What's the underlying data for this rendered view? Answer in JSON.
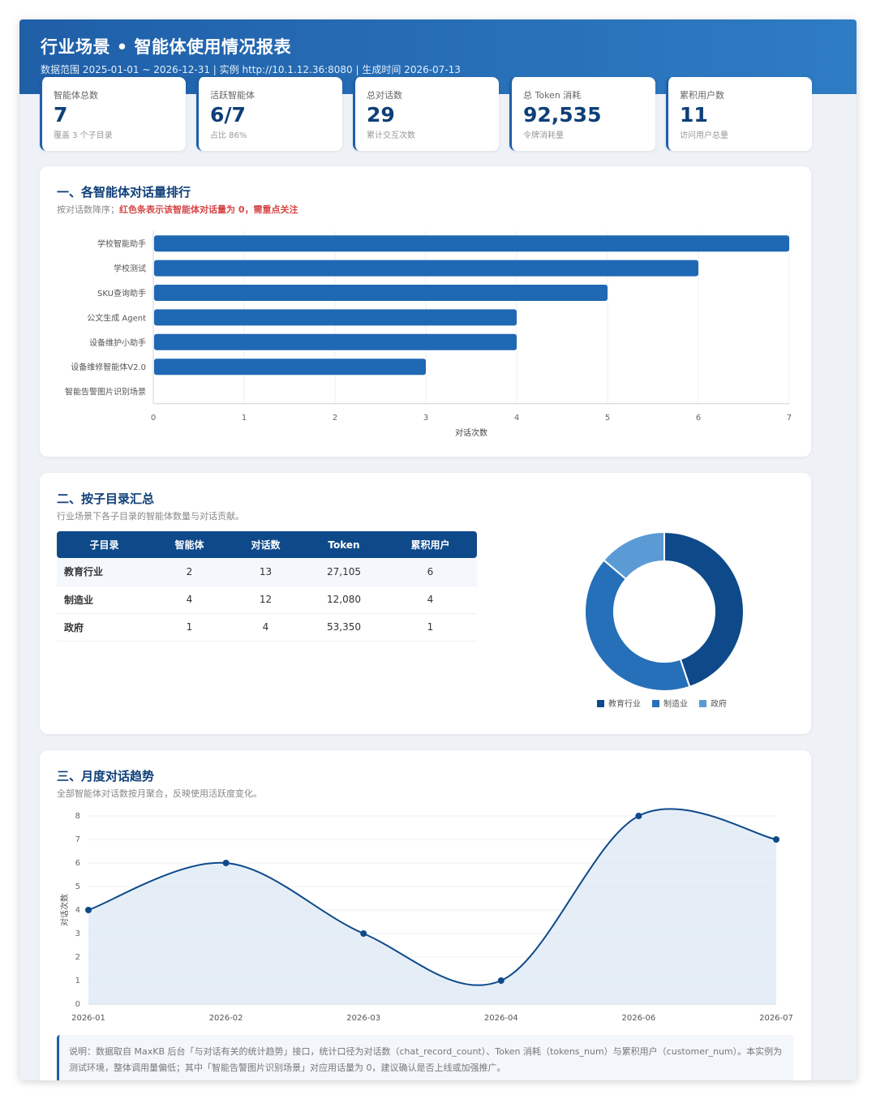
{
  "header": {
    "title": "行业场景 • 智能体使用情况报表",
    "meta": "数据范围 2025-01-01 ~ 2026-12-31  |  实例 http://10.1.12.36:8080  |  生成时间 2026-07-13"
  },
  "kpis": [
    {
      "label": "智能体总数",
      "value": "7",
      "sub": "覆盖 3 个子目录"
    },
    {
      "label": "活跃智能体",
      "value": "6/7",
      "sub": "占比 86%"
    },
    {
      "label": "总对话数",
      "value": "29",
      "sub": "累计交互次数"
    },
    {
      "label": "总 Token 消耗",
      "value": "92,535",
      "sub": "令牌消耗量"
    },
    {
      "label": "累积用户数",
      "value": "11",
      "sub": "访问用户总量"
    }
  ],
  "section1": {
    "title": "一、各智能体对话量排行",
    "desc_prefix": "按对话数降序；",
    "desc_highlight": "红色条表示该智能体对话量为 0，需重点关注"
  },
  "section2": {
    "title": "二、按子目录汇总",
    "desc": "行业场景下各子目录的智能体数量与对话贡献。",
    "columns": [
      "子目录",
      "智能体",
      "对话数",
      "Token",
      "累积用户"
    ],
    "rows": [
      [
        "教育行业",
        "2",
        "13",
        "27,105",
        "6"
      ],
      [
        "制造业",
        "4",
        "12",
        "12,080",
        "4"
      ],
      [
        "政府",
        "1",
        "4",
        "53,350",
        "1"
      ]
    ]
  },
  "section3": {
    "title": "三、月度对话趋势",
    "desc": "全部智能体对话数按月聚合，反映使用活跃度变化。"
  },
  "note": "说明：数据取自 MaxKB 后台「与对话有关的统计趋势」接口，统计口径为对话数（chat_record_count）、Token 消耗（tokens_num）与累积用户（customer_num）。本实例为测试环境，整体调用量偏低；其中「智能告警图片识别场景」对应用话量为 0，建议确认是否上线或加强推广。",
  "colors": {
    "bar": "#1f68b3",
    "zero_bar": "#d64545",
    "donut": [
      "#0e4a8a",
      "#2570b8",
      "#5b9bd5"
    ],
    "line": "#0e4a8a",
    "area": "#dce8f4"
  },
  "chart_data": [
    {
      "type": "bar",
      "orientation": "horizontal",
      "categories": [
        "学校智能助手",
        "学校测试",
        "SKU查询助手",
        "公文生成 Agent",
        "设备维护小助手",
        "设备维修智能体V2.0",
        "智能告警图片识别场景"
      ],
      "values": [
        7,
        6,
        5,
        4,
        4,
        3,
        0
      ],
      "xlabel": "对话次数",
      "xlim": [
        0,
        7
      ],
      "xticks": [
        "0",
        "1",
        "2",
        "3",
        "4",
        "5",
        "6",
        "7"
      ],
      "grid": true
    },
    {
      "type": "pie",
      "variant": "donut",
      "labels": [
        "教育行业",
        "制造业",
        "政府"
      ],
      "values": [
        13,
        12,
        4
      ],
      "legend": "bottom"
    },
    {
      "type": "area",
      "x": [
        "2026-01",
        "2026-02",
        "2026-03",
        "2026-04",
        "2026-06",
        "2026-07"
      ],
      "values": [
        4,
        6,
        3,
        1,
        8,
        7
      ],
      "ylabel": "对话次数",
      "ylim": [
        0,
        8
      ],
      "yticks": [
        "0",
        "1",
        "2",
        "3",
        "4",
        "5",
        "6",
        "7",
        "8"
      ],
      "grid": true
    }
  ]
}
